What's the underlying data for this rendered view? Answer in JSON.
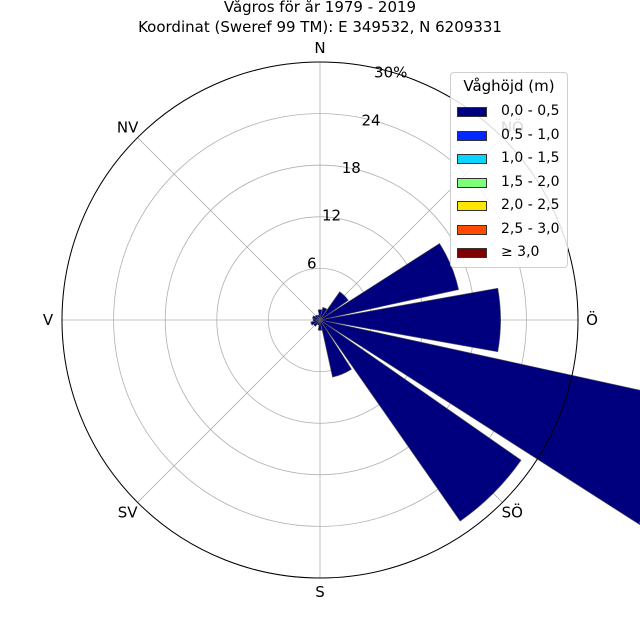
{
  "title": "Vågros för år 1979 - 2019",
  "subtitle": "Koordinat (Sweref 99 TM): E 349532, N 6209331",
  "chart_data": {
    "type": "wind-rose",
    "directions": [
      "N",
      "NNÖ",
      "NÖ",
      "ÖNÖ",
      "Ö",
      "ÖSÖ",
      "SÖ",
      "SSÖ",
      "S",
      "SSV",
      "SV",
      "VSV",
      "V",
      "VNV",
      "NV",
      "NNV"
    ],
    "compass_labels": [
      "N",
      "NÖ",
      "Ö",
      "SÖ",
      "S",
      "SV",
      "V",
      "NV"
    ],
    "radial_ticks": [
      "6",
      "12",
      "18",
      "24",
      "30%"
    ],
    "rmax": 30,
    "legend_title": "Våghöjd (m)",
    "series": [
      {
        "name": "0,0 - 0,5",
        "color": "#00007f",
        "values": [
          1.2,
          1.5,
          4.0,
          16.5,
          21.0,
          44.0,
          28.5,
          6.8,
          1.2,
          0.6,
          0.9,
          1.1,
          0.8,
          0.9,
          0.7,
          0.6
        ]
      },
      {
        "name": "0,5 - 1,0",
        "color": "#0028ff",
        "values": [
          0,
          0,
          0,
          0,
          0,
          1.2,
          0,
          0,
          0,
          0,
          0,
          0,
          0,
          0,
          0,
          0
        ]
      },
      {
        "name": "1,0 - 1,5",
        "color": "#0ad4ff",
        "values": [
          0,
          0,
          0,
          0,
          0,
          0,
          0,
          0,
          0,
          0,
          0,
          0,
          0,
          0,
          0,
          0
        ]
      },
      {
        "name": "1,5 - 2,0",
        "color": "#7dff7a",
        "values": [
          0,
          0,
          0,
          0,
          0,
          0,
          0,
          0,
          0,
          0,
          0,
          0,
          0,
          0,
          0,
          0
        ]
      },
      {
        "name": "2,0 - 2,5",
        "color": "#ffe500",
        "values": [
          0,
          0,
          0,
          0,
          0,
          0,
          0,
          0,
          0,
          0,
          0,
          0,
          0,
          0,
          0,
          0
        ]
      },
      {
        "name": "2,5 - 3,0",
        "color": "#ff4a00",
        "values": [
          0,
          0,
          0,
          0,
          0,
          0,
          0,
          0,
          0,
          0,
          0,
          0,
          0,
          0,
          0,
          0
        ]
      },
      {
        "name": "≥ 3,0",
        "color": "#7f0000",
        "values": [
          0,
          0,
          0,
          0,
          0,
          0,
          0,
          0,
          0,
          0,
          0,
          0,
          0,
          0,
          0,
          0
        ]
      }
    ]
  }
}
